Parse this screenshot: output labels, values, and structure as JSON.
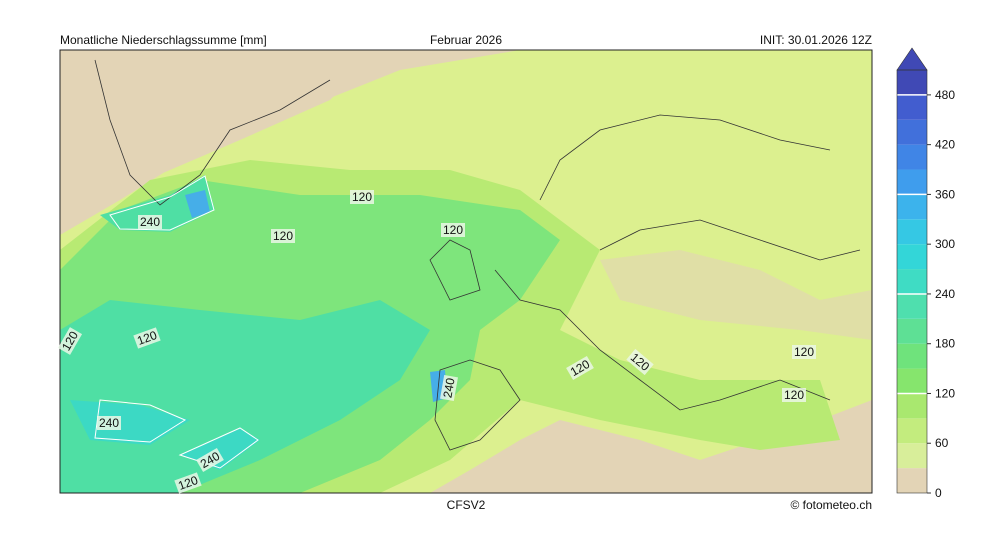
{
  "header": {
    "title": "Monatliche Niederschlagssumme [mm]",
    "period": "Februar 2026",
    "init": "INIT: 30.01.2026 12Z"
  },
  "footer": {
    "model": "CFSV2",
    "credit": "© fotometeo.ch"
  },
  "contour_labels": [
    "120",
    "240",
    "120",
    "120",
    "120",
    "120",
    "240",
    "120",
    "120",
    "120",
    "120",
    "240",
    "240",
    "120"
  ],
  "colorbar": {
    "lim": [
      0,
      510
    ],
    "ticks": [
      0,
      60,
      120,
      180,
      240,
      300,
      360,
      420,
      480
    ],
    "colors": [
      "#e3d4b6",
      "#d8ee9a",
      "#c3ec7e",
      "#a9e86f",
      "#86e56d",
      "#6fe37c",
      "#5ee095",
      "#4fdfae",
      "#3fdcc4",
      "#33d6d8",
      "#35c8e4",
      "#3cb3ec",
      "#3f9ded",
      "#4085e6",
      "#4170db",
      "#425dcf",
      "#4049b5"
    ],
    "contour_ticks": [
      120,
      240,
      360,
      480
    ]
  }
}
